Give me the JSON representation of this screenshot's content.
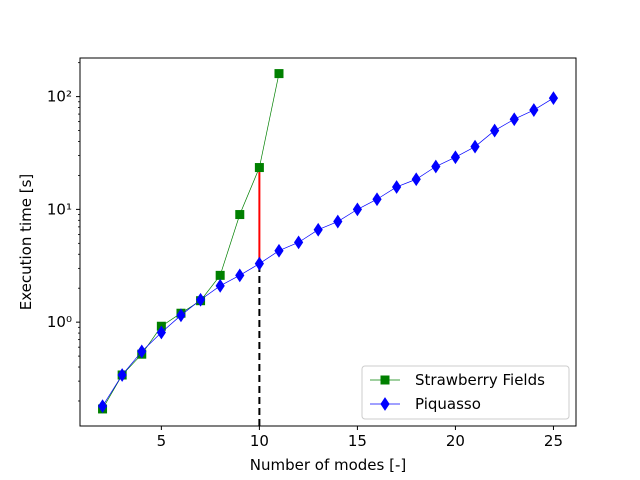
{
  "chart_data": {
    "type": "line",
    "title": "",
    "xlabel": "Number of modes [-]",
    "ylabel": "Execution time [s]",
    "yscale": "log",
    "xlim": [
      0.85,
      26.15
    ],
    "ylim": [
      0.12,
      220
    ],
    "xticks": [
      5,
      10,
      15,
      20,
      25
    ],
    "yticks": [
      {
        "value": 1,
        "label": "10⁰"
      },
      {
        "value": 10,
        "label": "10¹"
      },
      {
        "value": 100,
        "label": "10²"
      }
    ],
    "grid": false,
    "legend_position": "lower right",
    "series": [
      {
        "name": "Strawberry Fields",
        "color": "#008000",
        "marker": "square",
        "x": [
          2,
          3,
          4,
          5,
          6,
          7,
          8,
          9,
          10,
          11
        ],
        "y": [
          0.17,
          0.34,
          0.52,
          0.92,
          1.2,
          1.55,
          2.6,
          9.0,
          23.5,
          160
        ]
      },
      {
        "name": "Piquasso",
        "color": "#0000ff",
        "marker": "diamond",
        "x": [
          2,
          3,
          4,
          5,
          6,
          7,
          8,
          9,
          10,
          11,
          12,
          13,
          14,
          15,
          16,
          17,
          18,
          19,
          20,
          21,
          22,
          23,
          24,
          25
        ],
        "y": [
          0.18,
          0.34,
          0.55,
          0.81,
          1.15,
          1.58,
          2.1,
          2.6,
          3.3,
          4.3,
          5.1,
          6.6,
          7.8,
          10.0,
          12.3,
          15.8,
          18.5,
          24.0,
          29.0,
          36.0,
          50.0,
          63.0,
          76.0,
          97.0
        ]
      }
    ],
    "annotations": [
      {
        "kind": "vertical-segment",
        "x": 10,
        "y_from": 3.3,
        "y_to": 23.5,
        "color": "#ff0000",
        "style": "solid"
      },
      {
        "kind": "vertical-segment",
        "x": 10,
        "y_from": 0.12,
        "y_to": 3.3,
        "color": "#000000",
        "style": "dashed"
      }
    ]
  }
}
